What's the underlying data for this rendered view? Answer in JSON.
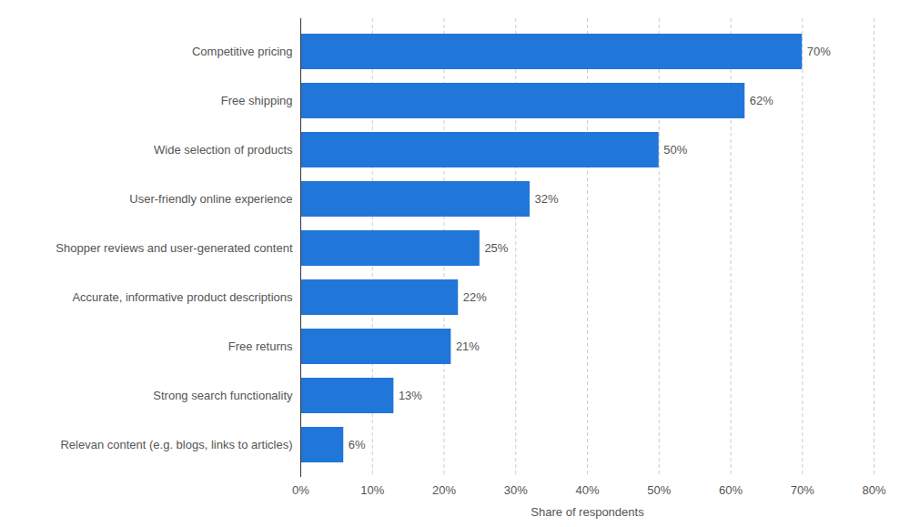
{
  "chart_data": {
    "type": "bar",
    "orientation": "horizontal",
    "categories": [
      "Relevan content (e.g. blogs, links to articles)",
      "Strong search functionality",
      "Free returns",
      "Accurate, informative product descriptions",
      "Shopper reviews and user-generated content",
      "User-friendly online experience",
      "Wide selection of products",
      "Free shipping",
      "Competitive pricing"
    ],
    "values": [
      6,
      13,
      21,
      22,
      25,
      32,
      50,
      62,
      70
    ],
    "value_labels": [
      "6%",
      "13%",
      "21%",
      "22%",
      "25%",
      "32%",
      "50%",
      "62%",
      "70%"
    ],
    "data_labels": true,
    "color": "#2176d9",
    "xlabel": "Share of respondents",
    "xlim": [
      0,
      80
    ],
    "xticks": [
      {
        "value": 0,
        "label": "0%"
      },
      {
        "value": 10,
        "label": "10%"
      },
      {
        "value": 20,
        "label": "20%"
      },
      {
        "value": 30,
        "label": "30%"
      },
      {
        "value": 40,
        "label": "40%"
      },
      {
        "value": 50,
        "label": "50%"
      },
      {
        "value": 60,
        "label": "60%"
      },
      {
        "value": 70,
        "label": "70%"
      },
      {
        "value": 80,
        "label": "80%"
      }
    ],
    "grid": true
  }
}
